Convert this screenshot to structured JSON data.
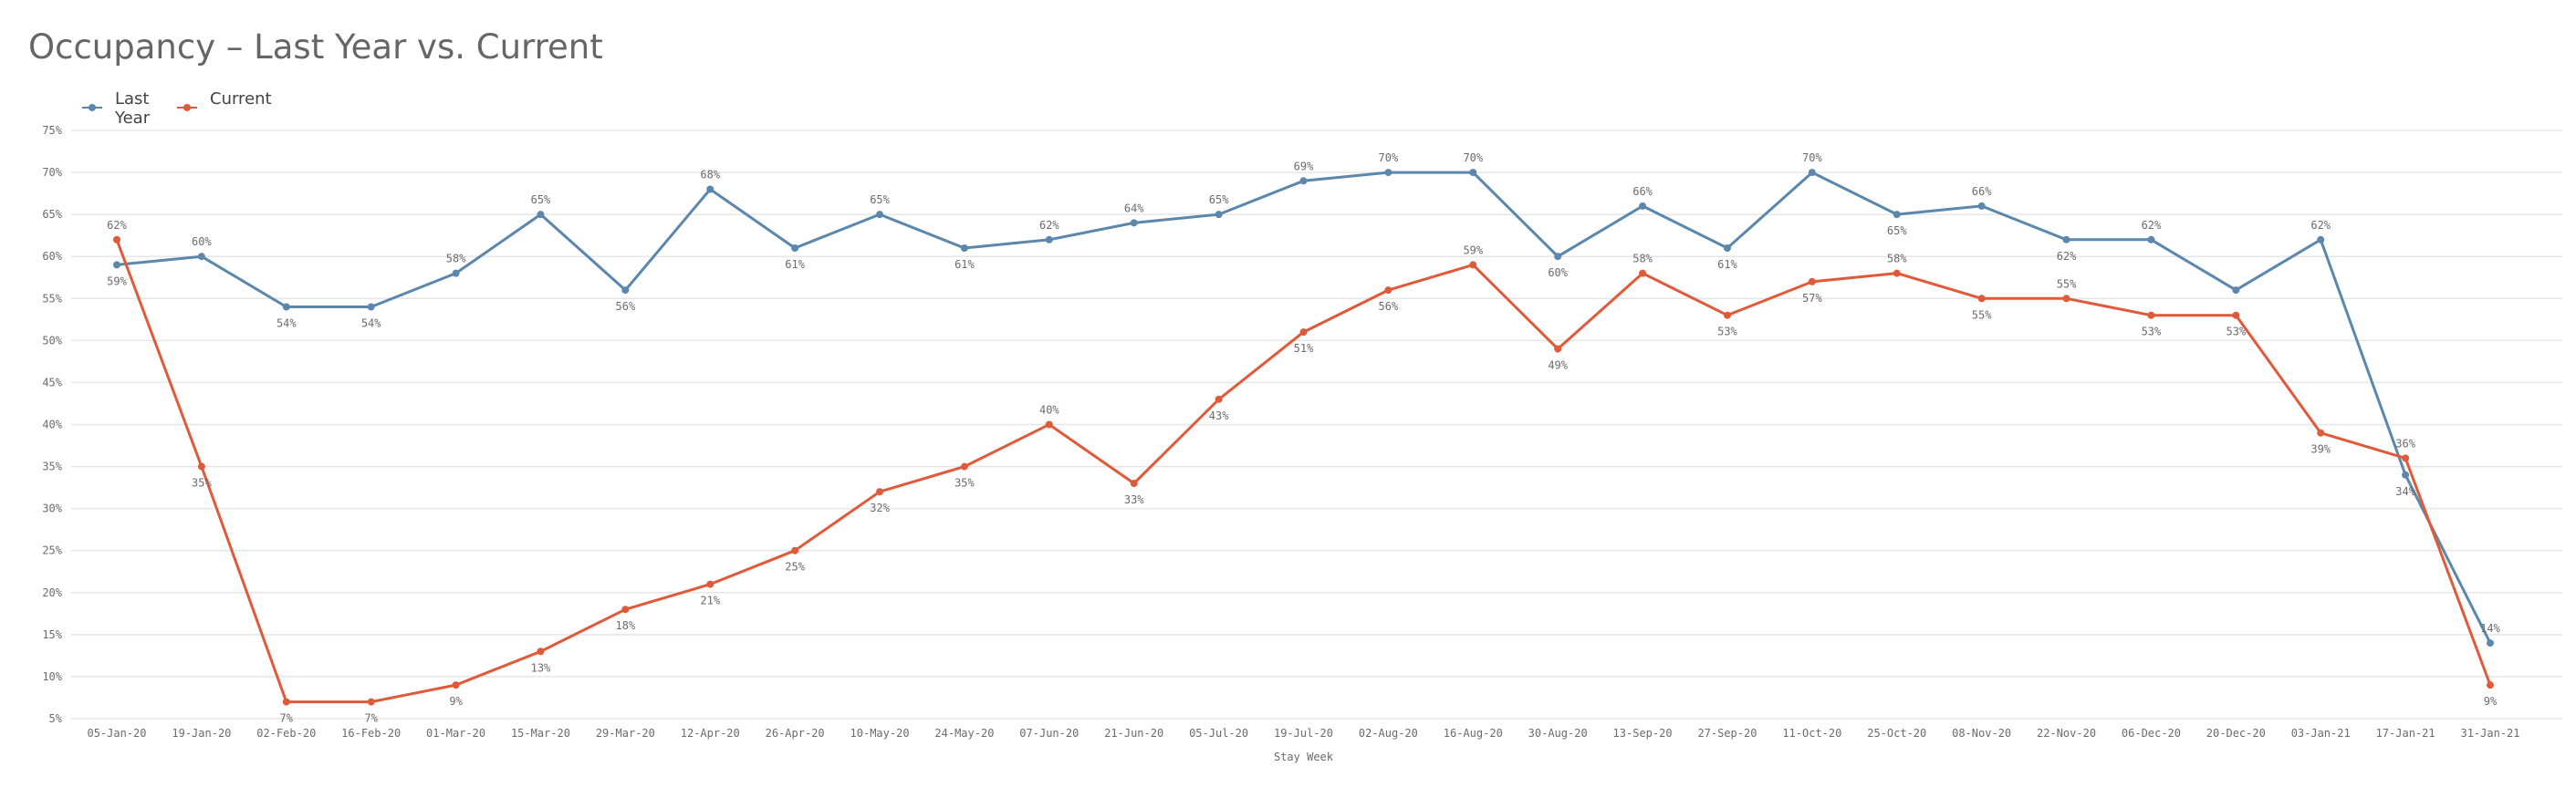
{
  "colors": {
    "last_year": "#5b87ad",
    "current": "#e05a3a",
    "grid": "#e6e6e6",
    "label": "#6b6b6b"
  },
  "chart_data": {
    "type": "line",
    "title": "Occupancy – Last Year vs. Current",
    "xlabel": "Stay Week",
    "ylabel": "",
    "ylim": [
      5,
      75
    ],
    "yticks": [
      "5%",
      "10%",
      "15%",
      "20%",
      "25%",
      "30%",
      "35%",
      "40%",
      "45%",
      "50%",
      "55%",
      "60%",
      "65%",
      "70%",
      "75%"
    ],
    "legend_position": "top-left",
    "grid": true,
    "categories": [
      "05-Jan-20",
      "19-Jan-20",
      "02-Feb-20",
      "16-Feb-20",
      "01-Mar-20",
      "15-Mar-20",
      "29-Mar-20",
      "12-Apr-20",
      "26-Apr-20",
      "10-May-20",
      "24-May-20",
      "07-Jun-20",
      "21-Jun-20",
      "05-Jul-20",
      "19-Jul-20",
      "02-Aug-20",
      "16-Aug-20",
      "30-Aug-20",
      "13-Sep-20",
      "27-Sep-20",
      "11-Oct-20",
      "25-Oct-20",
      "08-Nov-20",
      "22-Nov-20",
      "06-Dec-20",
      "20-Dec-20",
      "03-Jan-21",
      "17-Jan-21",
      "31-Jan-21"
    ],
    "series": [
      {
        "name": "Last Year",
        "values": [
          59,
          60,
          54,
          54,
          58,
          65,
          56,
          68,
          61,
          65,
          61,
          62,
          64,
          65,
          69,
          70,
          70,
          60,
          66,
          61,
          70,
          65,
          66,
          62,
          62,
          56,
          62,
          34,
          14
        ],
        "labels": [
          "59%",
          "60%",
          "54%",
          "54%",
          "58%",
          "65%",
          "56%",
          "68%",
          "61%",
          "65%",
          "61%",
          "62%",
          "64%",
          "65%",
          "69%",
          "70%",
          "70%",
          "60%",
          "66%",
          "61%",
          "70%",
          "65%",
          "66%",
          "62%",
          "62%",
          "",
          "62%",
          "34%",
          "14%"
        ]
      },
      {
        "name": "Current",
        "values": [
          62,
          35,
          7,
          7,
          9,
          13,
          18,
          21,
          25,
          32,
          35,
          40,
          33,
          43,
          51,
          56,
          59,
          49,
          58,
          53,
          57,
          58,
          55,
          55,
          53,
          53,
          39,
          36,
          9
        ],
        "labels": [
          "62%",
          "35%",
          "7%",
          "7%",
          "9%",
          "13%",
          "18%",
          "21%",
          "25%",
          "32%",
          "35%",
          "40%",
          "33%",
          "43%",
          "51%",
          "56%",
          "59%",
          "49%",
          "58%",
          "53%",
          "57%",
          "58%",
          "55%",
          "55%",
          "53%",
          "53%",
          "39%",
          "36%",
          "9%"
        ]
      }
    ]
  }
}
